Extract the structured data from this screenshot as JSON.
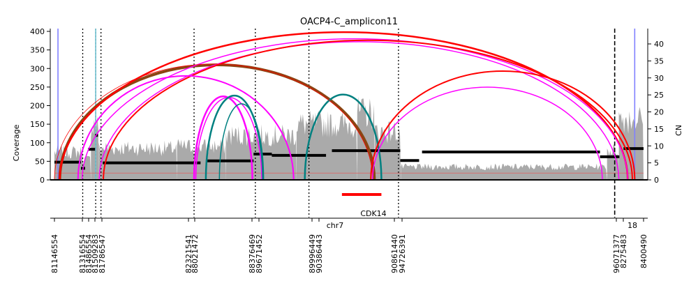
{
  "chart_data": {
    "type": "line",
    "title": "OACP4-C_amplicon11",
    "ylabel_left": "Coverage",
    "ylabel_right": "CN",
    "xlabel": "chr7",
    "secondary_chrom_label": "18",
    "gene_label": "CDK14",
    "coverage_ylim": [
      0,
      400
    ],
    "coverage_ticks": [
      0,
      50,
      100,
      150,
      200,
      250,
      300,
      350,
      400
    ],
    "cn_ylim": [
      0,
      44
    ],
    "cn_ticks": [
      0,
      5,
      10,
      15,
      20,
      25,
      30,
      35,
      40
    ],
    "position_tick_labels": [
      "81146554",
      "81316554",
      "81486554",
      "81509283",
      "81786547",
      "82321541",
      "88021472",
      "88376469",
      "89671452",
      "89996449",
      "90386443",
      "90861440",
      "94726391",
      "96071377",
      "8275483",
      "8400490"
    ],
    "coverage_segments": [
      {
        "from": 0.0,
        "to": 0.048,
        "level": 75
      },
      {
        "from": 0.048,
        "to": 0.062,
        "level": 55
      },
      {
        "from": 0.062,
        "to": 0.075,
        "level": 150
      },
      {
        "from": 0.075,
        "to": 0.208,
        "level": 85
      },
      {
        "from": 0.208,
        "to": 0.291,
        "level": 90
      },
      {
        "from": 0.291,
        "to": 0.411,
        "level": 120
      },
      {
        "from": 0.411,
        "to": 0.514,
        "level": 150
      },
      {
        "from": 0.514,
        "to": 0.544,
        "level": 180
      },
      {
        "from": 0.544,
        "to": 0.588,
        "level": 130
      },
      {
        "from": 0.588,
        "to": 0.938,
        "level": 35
      },
      {
        "from": 0.938,
        "to": 0.958,
        "level": 80
      },
      {
        "from": 0.958,
        "to": 1.0,
        "level": 165
      }
    ],
    "cn_segments": [
      {
        "from": 0.0,
        "to": 0.045,
        "cn": 5.2
      },
      {
        "from": 0.045,
        "to": 0.052,
        "cn": 3.4
      },
      {
        "from": 0.057,
        "to": 0.069,
        "cn": 9.0
      },
      {
        "from": 0.069,
        "to": 0.074,
        "cn": 13.1
      },
      {
        "from": 0.082,
        "to": 0.248,
        "cn": 5.0
      },
      {
        "from": 0.257,
        "to": 0.338,
        "cn": 5.6
      },
      {
        "from": 0.338,
        "to": 0.369,
        "cn": 7.6
      },
      {
        "from": 0.369,
        "to": 0.461,
        "cn": 7.2
      },
      {
        "from": 0.471,
        "to": 0.587,
        "cn": 8.6
      },
      {
        "from": 0.587,
        "to": 0.619,
        "cn": 5.7
      },
      {
        "from": 0.624,
        "to": 0.926,
        "cn": 8.2
      },
      {
        "from": 0.926,
        "to": 0.959,
        "cn": 6.8
      },
      {
        "from": 0.966,
        "to": 1.0,
        "cn": 9.2
      }
    ],
    "cn_baseline": 2,
    "breakpoint_lines": [
      {
        "pos": 0.048,
        "style": "dotted"
      },
      {
        "pos": 0.07,
        "style": "dotted"
      },
      {
        "pos": 0.079,
        "style": "dotted"
      },
      {
        "pos": 0.237,
        "style": "dotted"
      },
      {
        "pos": 0.341,
        "style": "dotted"
      },
      {
        "pos": 0.432,
        "style": "dotted"
      },
      {
        "pos": 0.584,
        "style": "dotted"
      },
      {
        "pos": 0.951,
        "style": "dashed"
      }
    ],
    "discordant_vertical_lines": [
      {
        "pos": 0.006,
        "color": "#8080ff"
      },
      {
        "pos": 0.07,
        "color": "#6fc0d0"
      },
      {
        "pos": 0.985,
        "color": "#8080ff"
      }
    ],
    "arcs": [
      {
        "from": 0.009,
        "to": 0.543,
        "height": 310,
        "color": "#8B4513",
        "width": 4
      },
      {
        "from": 0.009,
        "to": 0.973,
        "height": 398,
        "color": "#ff0000",
        "width": 2.5
      },
      {
        "from": 0.047,
        "to": 0.973,
        "height": 380,
        "color": "#ff00ff",
        "width": 1.5
      },
      {
        "from": 0.076,
        "to": 0.958,
        "height": 372,
        "color": "#ff00ff",
        "width": 1.5
      },
      {
        "from": 0.083,
        "to": 0.981,
        "height": 376,
        "color": "#ff0000",
        "width": 2
      },
      {
        "from": 0.04,
        "to": 0.406,
        "height": 280,
        "color": "#ff00ff",
        "width": 2
      },
      {
        "from": 0.237,
        "to": 0.336,
        "height": 225,
        "color": "#ff00ff",
        "width": 2.5
      },
      {
        "from": 0.24,
        "to": 0.352,
        "height": 222,
        "color": "#ff00ff",
        "width": 1.5
      },
      {
        "from": 0.257,
        "to": 0.354,
        "height": 227,
        "color": "#008080",
        "width": 2.5
      },
      {
        "from": 0.28,
        "to": 0.355,
        "height": 205,
        "color": "#008080",
        "width": 1.5
      },
      {
        "from": 0.425,
        "to": 0.555,
        "height": 230,
        "color": "#008080",
        "width": 2.5
      },
      {
        "from": 0.537,
        "to": 0.985,
        "height": 293,
        "color": "#ff0000",
        "width": 2
      },
      {
        "from": 0.0,
        "to": 0.54,
        "height": 312,
        "color": "#ff0000",
        "width": 0.8
      },
      {
        "from": 0.54,
        "to": 0.93,
        "height": 250,
        "color": "#ff00ff",
        "width": 1.5
      }
    ],
    "gene_bar": {
      "from": 0.488,
      "to": 0.555,
      "color": "#ff0000"
    },
    "colors": {
      "coverage": "#aaaaaa",
      "cn_segment": "#000000",
      "cn_baseline": "#e06060"
    },
    "grid": false
  }
}
